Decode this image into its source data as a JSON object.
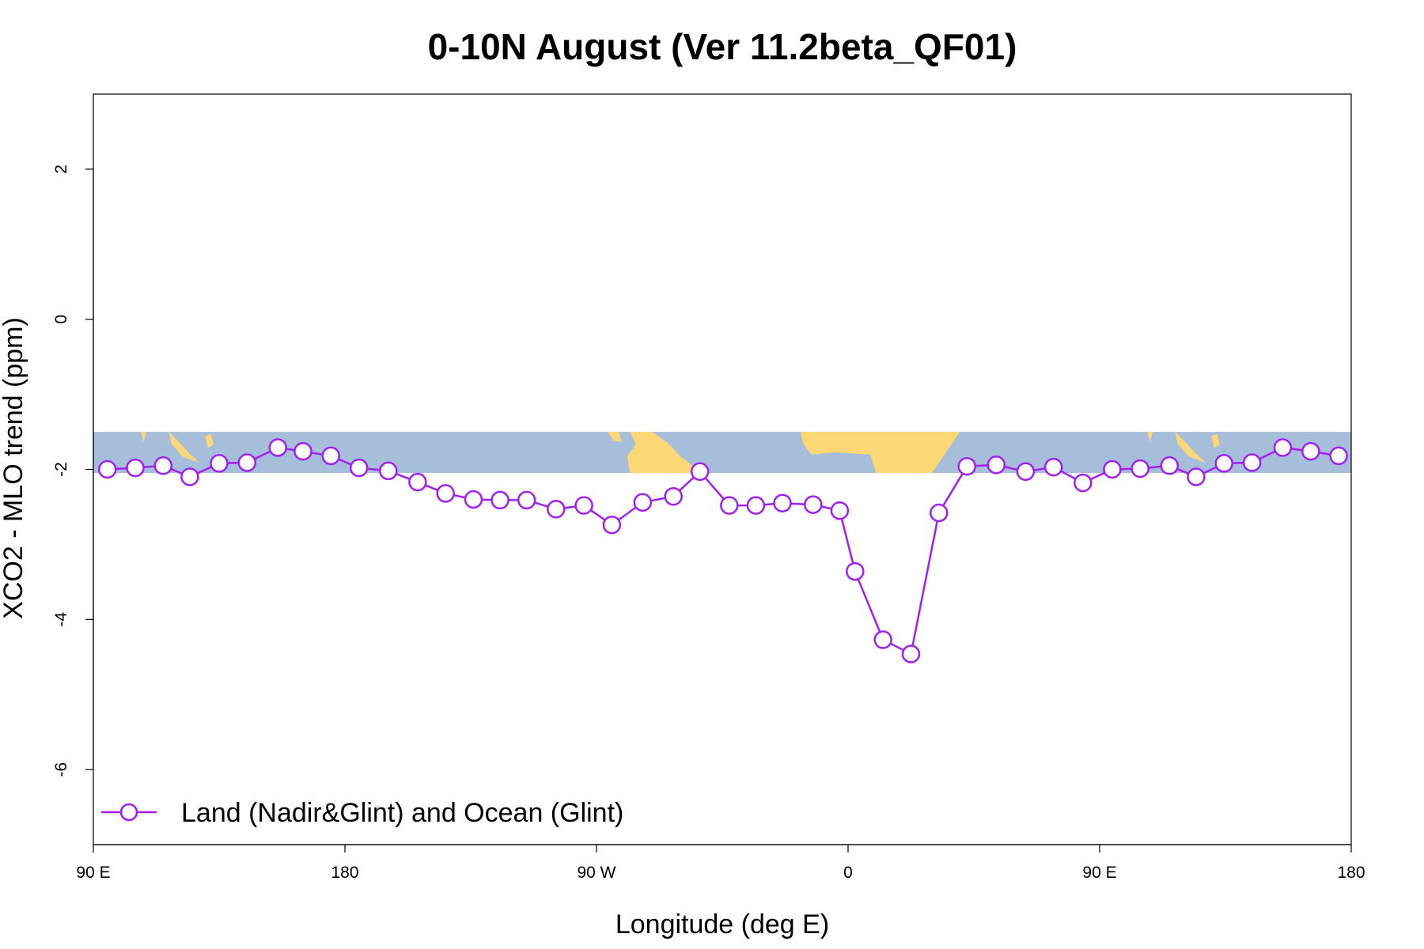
{
  "chart_data": {
    "type": "line",
    "title": "0-10N August (Ver 11.2beta_QF01)",
    "xlabel": "Longitude (deg E)",
    "ylabel": "XCO2 - MLO trend (ppm)",
    "xlim": [
      90,
      540
    ],
    "ylim": [
      -7,
      3
    ],
    "x_ticks": [
      {
        "value": 90,
        "label": "90 E"
      },
      {
        "value": 180,
        "label": "180"
      },
      {
        "value": 270,
        "label": "90 W"
      },
      {
        "value": 360,
        "label": "0"
      },
      {
        "value": 450,
        "label": "90 E"
      },
      {
        "value": 540,
        "label": "180"
      }
    ],
    "y_ticks": [
      {
        "value": 2,
        "label": "2"
      },
      {
        "value": 0,
        "label": "0"
      },
      {
        "value": -2,
        "label": "-2"
      },
      {
        "value": -4,
        "label": "-4"
      },
      {
        "value": -6,
        "label": "-6"
      }
    ],
    "map_band": {
      "lat_range": "0-10N",
      "y_range": [
        -2.05,
        -1.5
      ],
      "ocean_color": "#a7bedb",
      "land_color": "#fed876"
    },
    "series": [
      {
        "name": "Land (Nadir&Glint) and Ocean (Glint)",
        "color": "#a020f0",
        "marker": "open-circle",
        "x": [
          95,
          105,
          115,
          124.5,
          135,
          145,
          156,
          165,
          175,
          185,
          195.5,
          206,
          216,
          226,
          235.5,
          245,
          255.5,
          265.5,
          275.5,
          286.5,
          297.5,
          307,
          317.5,
          327,
          336.5,
          347.5,
          357,
          362.5,
          372.5,
          382.5,
          392.5,
          402.5,
          413,
          423.5,
          433.5,
          444,
          454.5,
          464.5,
          475,
          484.5,
          494.5,
          504.5,
          515.5,
          525.5,
          535.5
        ],
        "y": [
          -2.0,
          -1.98,
          -1.95,
          -2.1,
          -1.92,
          -1.91,
          -1.71,
          -1.76,
          -1.82,
          -1.98,
          -2.02,
          -2.17,
          -2.32,
          -2.4,
          -2.41,
          -2.41,
          -2.53,
          -2.48,
          -2.74,
          -2.44,
          -2.36,
          -2.03,
          -2.48,
          -2.48,
          -2.45,
          -2.47,
          -2.55,
          -3.36,
          -4.27,
          -4.46,
          -2.58,
          -1.96,
          -1.94,
          -2.03,
          -1.97,
          -2.18,
          -2.0,
          -1.99,
          -1.95,
          -2.1,
          -1.92,
          -1.91,
          -1.71,
          -1.76,
          -1.82
        ]
      }
    ],
    "legend": {
      "position": "bottom-left",
      "label": "Land (Nadir&Glint) and Ocean (Glint)"
    },
    "grid": false
  }
}
